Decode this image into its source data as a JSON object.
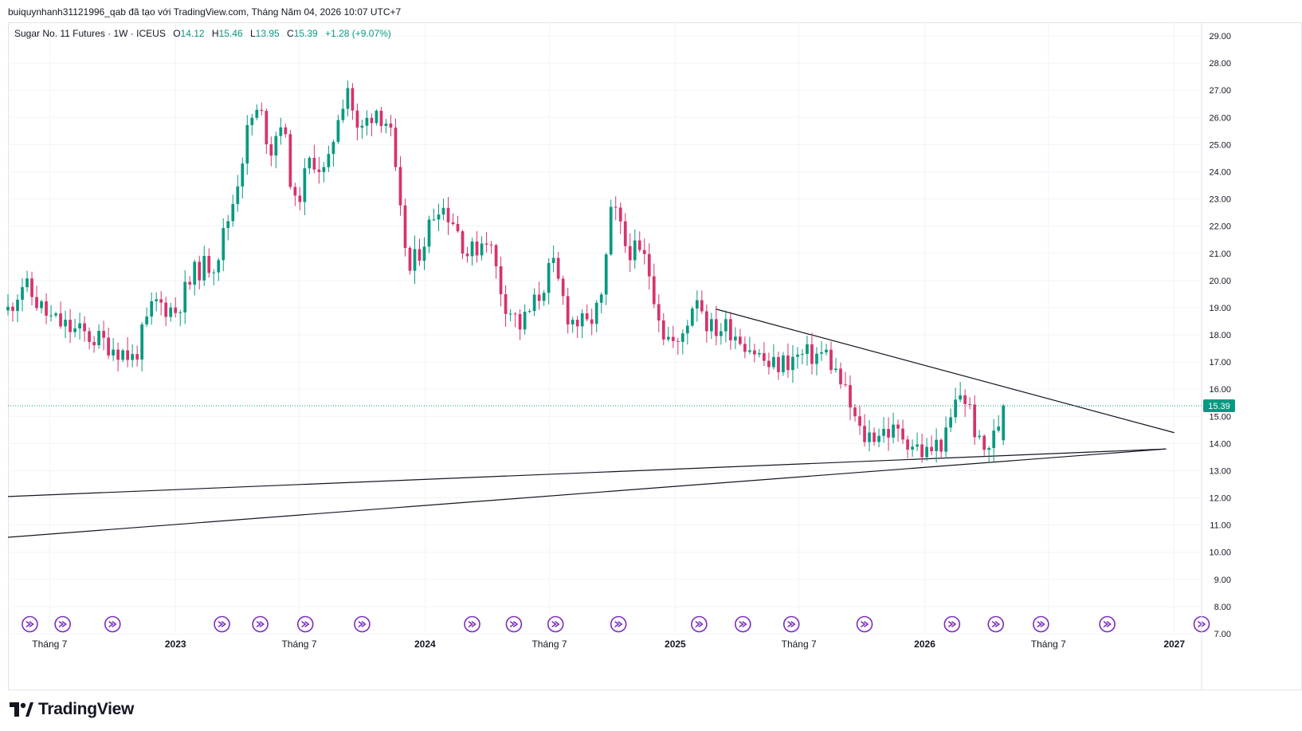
{
  "caption": "buiquynhanh31121996_qab đã tạo với TradingView.com, Tháng Năm 04, 2026 10:07 UTC+7",
  "legend": {
    "symbol": "Sugar No. 11 Futures · 1W · ICEUS",
    "open_label": "O",
    "open": "14.12",
    "high_label": "H",
    "high": "15.46",
    "low_label": "L",
    "low": "13.95",
    "close_label": "C",
    "close": "15.39",
    "change": "+1.28 (+9.07%)"
  },
  "brand": "TradingView",
  "colors": {
    "up": "#089981",
    "down": "#d6336c",
    "grid": "#f0f3fa",
    "line": "#131722",
    "marker": "#7b2cbf"
  },
  "chart_data": {
    "type": "candlestick",
    "interval": "1W",
    "last_price": 15.39,
    "last_price_label": "15.39",
    "ylim": [
      7,
      29.5
    ],
    "y_ticks": [
      "29.00",
      "28.00",
      "27.00",
      "26.00",
      "25.00",
      "24.00",
      "23.00",
      "22.00",
      "21.00",
      "20.00",
      "19.00",
      "18.00",
      "17.00",
      "16.00",
      "15.00",
      "14.00",
      "13.00",
      "12.00",
      "11.00",
      "10.00",
      "9.00",
      "8.00",
      "7.00"
    ],
    "x_start": "2022-05-01",
    "x_end": "2027-02-10",
    "x_ticks": [
      {
        "date": "2022-07-01",
        "label": "Tháng 7",
        "bold": false
      },
      {
        "date": "2023-01-01",
        "label": "2023",
        "bold": true
      },
      {
        "date": "2023-07-01",
        "label": "Tháng 7",
        "bold": false
      },
      {
        "date": "2024-01-01",
        "label": "2024",
        "bold": true
      },
      {
        "date": "2024-07-01",
        "label": "Tháng 7",
        "bold": false
      },
      {
        "date": "2025-01-01",
        "label": "2025",
        "bold": true
      },
      {
        "date": "2025-07-01",
        "label": "Tháng 7",
        "bold": false
      },
      {
        "date": "2026-01-01",
        "label": "2026",
        "bold": true
      },
      {
        "date": "2026-07-01",
        "label": "Tháng 7",
        "bold": false
      },
      {
        "date": "2027-01-01",
        "label": "2027",
        "bold": true
      }
    ],
    "anchors": [
      [
        "2022-05-01",
        18.9
      ],
      [
        "2022-05-22",
        19.9
      ],
      [
        "2022-06-12",
        19.2
      ],
      [
        "2022-07-01",
        18.6
      ],
      [
        "2022-08-01",
        18.2
      ],
      [
        "2022-09-01",
        17.9
      ],
      [
        "2022-10-01",
        17.6
      ],
      [
        "2022-11-01",
        17.1
      ],
      [
        "2022-12-01",
        19.2
      ],
      [
        "2023-01-01",
        18.9
      ],
      [
        "2023-02-01",
        20.4
      ],
      [
        "2023-03-01",
        20.7
      ],
      [
        "2023-03-25",
        22.8
      ],
      [
        "2023-04-20",
        25.9
      ],
      [
        "2023-05-05",
        26.2
      ],
      [
        "2023-05-20",
        24.8
      ],
      [
        "2023-06-05",
        26.0
      ],
      [
        "2023-06-25",
        22.7
      ],
      [
        "2023-07-20",
        24.6
      ],
      [
        "2023-08-10",
        23.8
      ],
      [
        "2023-08-25",
        26.0
      ],
      [
        "2023-09-10",
        27.2
      ],
      [
        "2023-09-25",
        25.3
      ],
      [
        "2023-10-20",
        26.4
      ],
      [
        "2023-11-10",
        25.7
      ],
      [
        "2023-11-25",
        22.5
      ],
      [
        "2023-12-10",
        20.3
      ],
      [
        "2024-01-01",
        21.6
      ],
      [
        "2024-01-20",
        22.9
      ],
      [
        "2024-02-10",
        22.3
      ],
      [
        "2024-03-05",
        20.9
      ],
      [
        "2024-04-01",
        21.7
      ],
      [
        "2024-04-25",
        19.3
      ],
      [
        "2024-05-20",
        18.3
      ],
      [
        "2024-06-15",
        19.4
      ],
      [
        "2024-07-05",
        20.6
      ],
      [
        "2024-07-30",
        18.6
      ],
      [
        "2024-08-25",
        18.3
      ],
      [
        "2024-09-15",
        19.2
      ],
      [
        "2024-10-01",
        22.8
      ],
      [
        "2024-10-20",
        21.3
      ],
      [
        "2024-11-20",
        20.7
      ],
      [
        "2024-12-15",
        18.1
      ],
      [
        "2025-01-05",
        17.5
      ],
      [
        "2025-02-01",
        19.6
      ],
      [
        "2025-02-20",
        18.2
      ],
      [
        "2025-03-20",
        18.3
      ],
      [
        "2025-04-20",
        17.6
      ],
      [
        "2025-05-20",
        16.8
      ],
      [
        "2025-07-01",
        17.2
      ],
      [
        "2025-08-10",
        17.3
      ],
      [
        "2025-09-01",
        16.2
      ],
      [
        "2025-10-01",
        14.2
      ],
      [
        "2025-11-01",
        14.5
      ],
      [
        "2025-12-01",
        14.3
      ],
      [
        "2026-01-01",
        13.6
      ],
      [
        "2026-02-01",
        14.2
      ],
      [
        "2026-02-20",
        15.9
      ],
      [
        "2026-03-05",
        15.5
      ],
      [
        "2026-03-25",
        13.6
      ],
      [
        "2026-04-12",
        14.2
      ],
      [
        "2026-04-26",
        15.39
      ]
    ],
    "trend_lines": [
      {
        "from": [
          "2022-05-01",
          12.05
        ],
        "to": [
          "2026-12-20",
          13.8
        ]
      },
      {
        "from": [
          "2022-05-01",
          10.55
        ],
        "to": [
          "2026-12-20",
          13.8
        ]
      },
      {
        "from": [
          "2025-03-01",
          18.95
        ],
        "to": [
          "2027-01-01",
          14.4
        ]
      }
    ],
    "event_markers": [
      "2022-06-02",
      "2022-07-20",
      "2022-10-01",
      "2023-03-10",
      "2023-05-05",
      "2023-07-10",
      "2023-10-01",
      "2024-03-10",
      "2024-05-10",
      "2024-07-10",
      "2024-10-10",
      "2025-02-05",
      "2025-04-10",
      "2025-06-20",
      "2025-10-05",
      "2026-02-10",
      "2026-04-15",
      "2026-06-20",
      "2026-09-25",
      "2027-02-10"
    ]
  }
}
